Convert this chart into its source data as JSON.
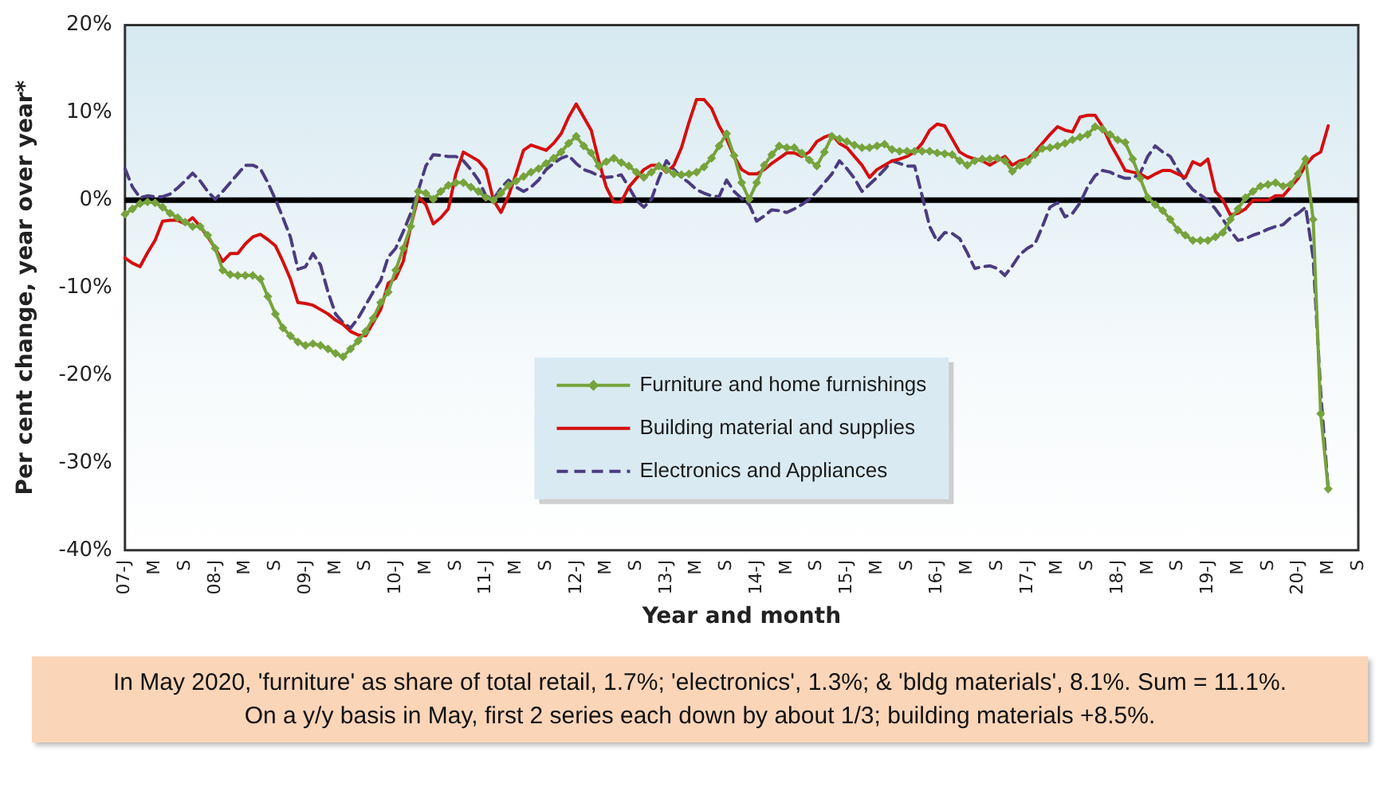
{
  "chart_data": {
    "type": "line",
    "xlabel": "Year and month",
    "ylabel": "Per cent change, year over year*",
    "categories": [
      "07-J",
      null,
      null,
      null,
      "M",
      null,
      null,
      null,
      "S",
      null,
      null,
      null,
      "08-J",
      null,
      null,
      null,
      "M",
      null,
      null,
      null,
      "S",
      null,
      null,
      null,
      "09-J",
      null,
      null,
      null,
      "M",
      null,
      null,
      null,
      "S",
      null,
      null,
      null,
      "10-J",
      null,
      null,
      null,
      "M",
      null,
      null,
      null,
      "S",
      null,
      null,
      null,
      "11-J",
      null,
      null,
      null,
      "M",
      null,
      null,
      null,
      "S",
      null,
      null,
      null,
      "12-J",
      null,
      null,
      null,
      "M",
      null,
      null,
      null,
      "S",
      null,
      null,
      null,
      "13-J",
      null,
      null,
      null,
      "M",
      null,
      null,
      null,
      "S",
      null,
      null,
      null,
      "14-J",
      null,
      null,
      null,
      "M",
      null,
      null,
      null,
      "S",
      null,
      null,
      null,
      "15-J",
      null,
      null,
      null,
      "M",
      null,
      null,
      null,
      "S",
      null,
      null,
      null,
      "16-J",
      null,
      null,
      null,
      "M",
      null,
      null,
      null,
      "S",
      null,
      null,
      null,
      "17-J",
      null,
      null,
      null,
      "M",
      null,
      null,
      null,
      "S",
      null,
      null,
      null,
      "18-J",
      null,
      null,
      null,
      "M",
      null,
      null,
      null,
      "S",
      null,
      null,
      null,
      "19-J",
      null,
      null,
      null,
      "M",
      null,
      null,
      null,
      "S",
      null,
      null,
      null,
      "20-J",
      null,
      null,
      null,
      "M",
      null,
      null,
      null,
      "S"
    ],
    "series": [
      {
        "name": "Furniture and home furnishings",
        "color": "#77a33c",
        "marker": "diamond",
        "line_style": "solid",
        "values": [
          -1.6,
          -1,
          -0.4,
          -0.2,
          -0.3,
          -0.8,
          -1.5,
          -2,
          -2.5,
          -3,
          -3,
          -4,
          -5.5,
          -8,
          -8.5,
          -8.6,
          -8.6,
          -8.6,
          -9,
          -11,
          -13,
          -14.6,
          -15.5,
          -16.2,
          -16.6,
          -16.4,
          -16.6,
          -17,
          -17.5,
          -17.9,
          -17,
          -16.1,
          -15,
          -13.5,
          -11.7,
          -10.5,
          -8,
          -5.5,
          -3,
          1,
          0.8,
          0.1,
          1,
          1.7,
          2,
          2,
          1.5,
          1,
          0.3,
          0,
          0.8,
          1.7,
          2.2,
          2.7,
          3.2,
          3.6,
          4.2,
          4.8,
          5.5,
          6.5,
          7.3,
          6.2,
          5.4,
          3.9,
          4.4,
          4.8,
          4.3,
          3.9,
          3.2,
          2.6,
          3.2,
          3.9,
          3.5,
          3,
          2.9,
          3,
          3.2,
          3.8,
          4.8,
          6.2,
          7.6,
          5.1,
          2,
          0.1,
          2,
          4,
          5.2,
          6.2,
          6,
          6,
          5.4,
          4.6,
          3.9,
          5.5,
          7.3,
          7,
          6.7,
          6.3,
          6,
          6,
          6.2,
          6.4,
          5.8,
          5.6,
          5.6,
          5.6,
          5.6,
          5.6,
          5.4,
          5.3,
          5.2,
          4.5,
          4,
          4.5,
          4.7,
          4.7,
          4.8,
          4.5,
          3.3,
          4,
          4.4,
          5.2,
          5.9,
          6,
          6.2,
          6.5,
          6.9,
          7.2,
          7.5,
          8.4,
          8.1,
          7.5,
          6.9,
          6.6,
          4.7,
          2.5,
          0.3,
          -0.5,
          -1.2,
          -2.2,
          -3.4,
          -4,
          -4.6,
          -4.6,
          -4.6,
          -4.2,
          -3.7,
          -2.2,
          -1,
          0.3,
          1,
          1.6,
          1.8,
          2,
          1.6,
          1.8,
          3,
          4.7,
          -2.2,
          -24.4,
          -33,
          null,
          null,
          null,
          null
        ]
      },
      {
        "name": "Building material and supplies",
        "color": "#d40f0f",
        "marker": "none",
        "line_style": "solid",
        "values": [
          -6.6,
          -7.2,
          -7.6,
          -6,
          -4.6,
          -2.4,
          -2.3,
          -2.3,
          -2.7,
          -2,
          -3,
          -4.2,
          -5.5,
          -7,
          -6.1,
          -6.1,
          -5,
          -4.2,
          -3.9,
          -4.5,
          -5.2,
          -7,
          -9,
          -11.7,
          -11.8,
          -12,
          -12.5,
          -13,
          -13.7,
          -14.2,
          -15,
          -15.4,
          -15.5,
          -14,
          -12.5,
          -9.5,
          -8.9,
          -7,
          -3,
          0.4,
          -0.5,
          -2.7,
          -2,
          -1,
          3,
          5.5,
          5,
          4.5,
          3.5,
          0,
          -1.4,
          0.5,
          3,
          5.7,
          6.3,
          6,
          5.7,
          6.5,
          7.6,
          9.5,
          11,
          9.5,
          8,
          4.5,
          1.5,
          -0.2,
          -0.2,
          1.5,
          2.5,
          3.5,
          4,
          4,
          3.2,
          4,
          6,
          8.9,
          11.5,
          11.5,
          10.5,
          8.5,
          7,
          5,
          3.5,
          3,
          3,
          3.5,
          4.2,
          4.8,
          5.4,
          5.4,
          5,
          5.5,
          6.7,
          7.2,
          7.5,
          6.5,
          6,
          5,
          4,
          2.6,
          3.5,
          4,
          4.5,
          4.7,
          5,
          5.5,
          6.5,
          8,
          8.7,
          8.5,
          7,
          5.5,
          5,
          4.7,
          4.5,
          4,
          4.5,
          5,
          4,
          4.5,
          4.7,
          5.5,
          6.5,
          7.5,
          8.4,
          8,
          7.8,
          9.5,
          9.7,
          9.7,
          8.4,
          6.5,
          5,
          3.4,
          3.2,
          3,
          2.5,
          3,
          3.4,
          3.4,
          3,
          2.6,
          4.4,
          4,
          4.7,
          1,
          0,
          -1.7,
          -1.5,
          -1,
          0,
          0,
          0,
          0.5,
          0.5,
          1.5,
          2.5,
          4,
          5,
          5.5,
          8.5,
          null,
          null,
          null,
          null
        ]
      },
      {
        "name": "Electronics and Appliances",
        "color": "#4b3c80",
        "marker": "none",
        "line_style": "dashed",
        "values": [
          3.6,
          1.5,
          0.3,
          0.5,
          0.4,
          0.4,
          0.7,
          1.4,
          2.2,
          3.1,
          2.2,
          1,
          0.1,
          1,
          2,
          3,
          4,
          4,
          3.6,
          2,
          0.1,
          -2,
          -4.2,
          -7.9,
          -7.6,
          -6.1,
          -7.4,
          -10.5,
          -13,
          -14,
          -14.6,
          -13.5,
          -12,
          -10.5,
          -9.2,
          -6.5,
          -5.5,
          -3.6,
          -1.5,
          1.1,
          3.9,
          5.2,
          5.1,
          5,
          5,
          4.5,
          3.5,
          2.3,
          0.5,
          0.1,
          1.4,
          2.3,
          1.5,
          1,
          1.5,
          2.3,
          3.5,
          4.2,
          4.8,
          5.1,
          4.2,
          3.5,
          3.2,
          2.8,
          2.6,
          2.7,
          2.9,
          1.5,
          0,
          -0.8,
          0.1,
          2.5,
          4.5,
          3.5,
          2.6,
          2,
          1.2,
          0.8,
          0.5,
          0.4,
          2.3,
          1,
          0.2,
          -0.5,
          -2.4,
          -1.8,
          -1.1,
          -1.2,
          -1.4,
          -1,
          -0.5,
          0.1,
          1,
          2,
          3,
          4.5,
          3.6,
          2.5,
          1,
          1.8,
          2.6,
          3.5,
          4.5,
          4.2,
          3.9,
          3.9,
          0.5,
          -3,
          -4.7,
          -3.7,
          -3.8,
          -4.4,
          -6,
          -7.8,
          -7.6,
          -7.5,
          -7.8,
          -8.6,
          -7.5,
          -6.2,
          -5.5,
          -5,
          -3,
          -0.8,
          -0.3,
          -1.9,
          -1.5,
          -0.3,
          1.5,
          2.8,
          3.4,
          3.2,
          2.8,
          2.5,
          2.5,
          3.1,
          5,
          6.2,
          5.5,
          5,
          3.5,
          2.2,
          1.2,
          0.6,
          0,
          -1,
          -2.2,
          -3.5,
          -4.6,
          -4.4,
          -4,
          -3.7,
          -3.3,
          -3,
          -2.8,
          -2,
          -1.5,
          -0.8,
          -6.6,
          -22,
          -33,
          null,
          null,
          null,
          null
        ]
      }
    ],
    "ylim": [
      -40,
      20
    ],
    "yticks": [
      {
        "value": -40,
        "label": "-40%"
      },
      {
        "value": -30,
        "label": "-30%"
      },
      {
        "value": -20,
        "label": "-20%"
      },
      {
        "value": -10,
        "label": "-10%"
      },
      {
        "value": 0,
        "label": "0%"
      },
      {
        "value": 10,
        "label": "10%"
      },
      {
        "value": 20,
        "label": "20%"
      }
    ],
    "ref_lines": [
      {
        "axis": "y",
        "value": 0,
        "color": "#000000"
      }
    ],
    "legend": "bottom",
    "annotations": [
      "In May 2020, 'furniture' as share of total retail, 1.7%; 'electronics', 1.3%; & 'bldg materials', 8.1%. Sum = 11.1%.",
      "On a y/y basis in May, first 2 series each down by about 1/3; building materials +8.5%."
    ]
  }
}
